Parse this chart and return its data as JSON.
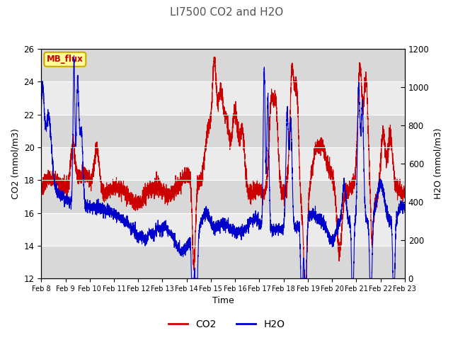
{
  "title": "LI7500 CO2 and H2O",
  "xlabel": "Time",
  "ylabel_left": "CO2 (mmol/m3)",
  "ylabel_right": "H2O (mmol/m3)",
  "co2_color": "#cc0000",
  "h2o_color": "#0000cc",
  "ylim_left": [
    12,
    26
  ],
  "ylim_right": [
    0,
    1200
  ],
  "bg_white": "#ffffff",
  "plot_bg_light": "#ebebeb",
  "plot_bg_dark": "#d8d8d8",
  "label_box_text": "MB_flux",
  "label_box_bg": "#ffff99",
  "label_box_edge": "#ccaa00",
  "x_tick_labels": [
    "Feb 8",
    "Feb 9",
    "Feb 10",
    "Feb 11",
    "Feb 12",
    "Feb 13",
    "Feb 14",
    "Feb 15",
    "Feb 16",
    "Feb 17",
    "Feb 18",
    "Feb 19",
    "Feb 20",
    "Feb 21",
    "Feb 22",
    "Feb 23"
  ],
  "yticks_left": [
    12,
    14,
    16,
    18,
    20,
    22,
    24,
    26
  ],
  "yticks_right": [
    0,
    200,
    400,
    600,
    800,
    1000,
    1200
  ],
  "n_points": 5000,
  "seed": 7
}
